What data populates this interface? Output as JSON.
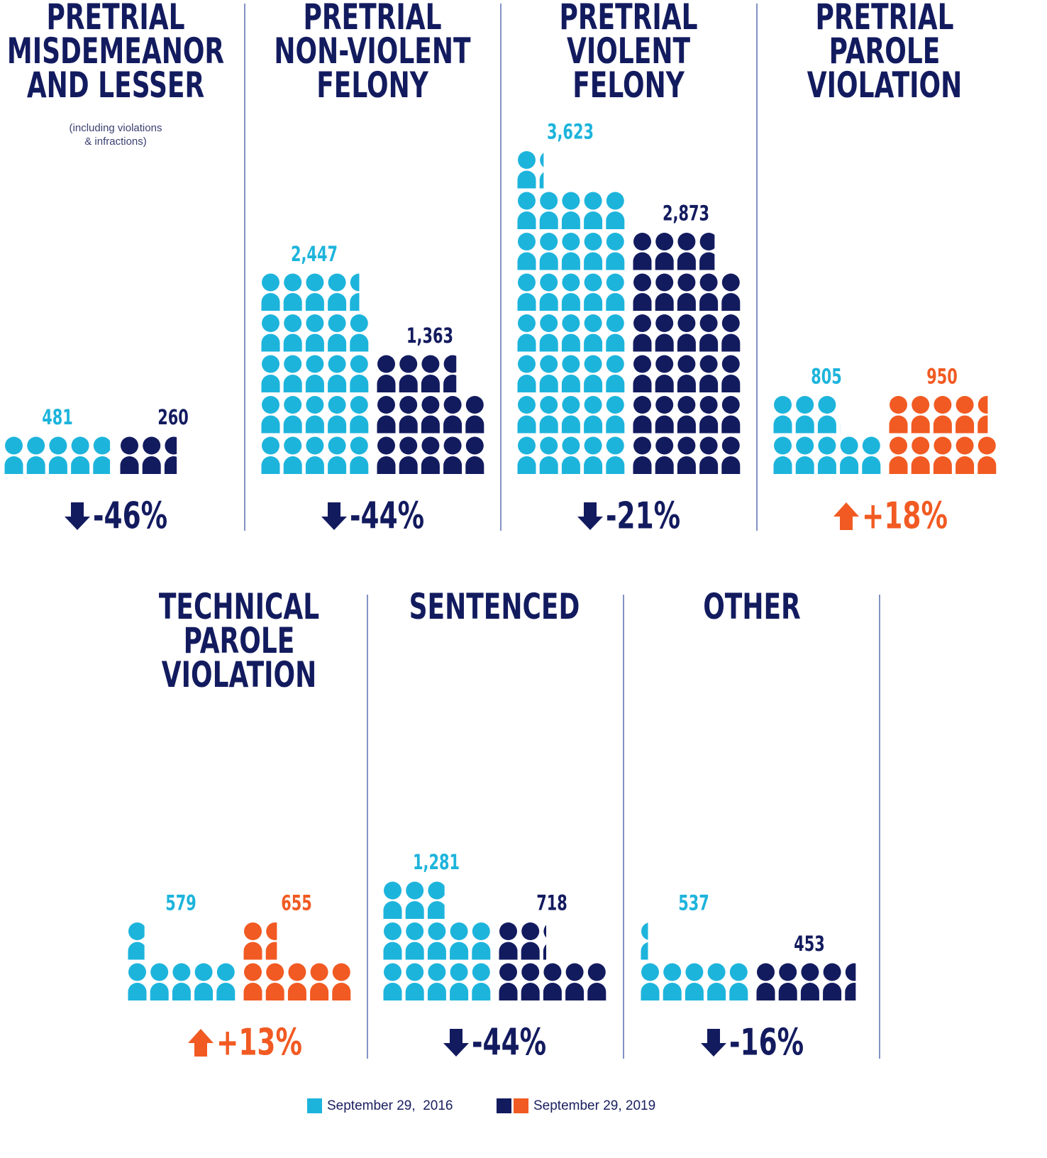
{
  "chart_data": [
    {
      "type": "pictogram",
      "title": [
        "PRETRIAL",
        "MISDEMEANOR",
        "AND LESSER"
      ],
      "subtitle": [
        "(including violations",
        "& infractions)"
      ],
      "values": [
        481,
        260
      ],
      "value_labels": [
        "481",
        "260"
      ],
      "colors": [
        "#1db4dc",
        "#131b5f"
      ],
      "change": -46,
      "change_label": "-46%"
    },
    {
      "type": "pictogram",
      "title": [
        "PRETRIAL",
        "NON-VIOLENT",
        "FELONY"
      ],
      "values": [
        2447,
        1363
      ],
      "value_labels": [
        "2,447",
        "1,363"
      ],
      "colors": [
        "#1db4dc",
        "#131b5f"
      ],
      "change": -44,
      "change_label": "-44%"
    },
    {
      "type": "pictogram",
      "title": [
        "PRETRIAL",
        "VIOLENT",
        "FELONY"
      ],
      "values": [
        3623,
        2873
      ],
      "value_labels": [
        "3,623",
        "2,873"
      ],
      "colors": [
        "#1db4dc",
        "#131b5f"
      ],
      "change": -21,
      "change_label": "-21%"
    },
    {
      "type": "pictogram",
      "title": [
        "PRETRIAL",
        "PAROLE",
        "VIOLATION"
      ],
      "values": [
        805,
        950
      ],
      "value_labels": [
        "805",
        "950"
      ],
      "colors": [
        "#1db4dc",
        "#f15a22"
      ],
      "change": 18,
      "change_label": "+18%"
    },
    {
      "type": "pictogram",
      "title": [
        "TECHNICAL",
        "PAROLE",
        "VIOLATION"
      ],
      "values": [
        579,
        655
      ],
      "value_labels": [
        "579",
        "655"
      ],
      "colors": [
        "#1db4dc",
        "#f15a22"
      ],
      "change": 13,
      "change_label": "+13%"
    },
    {
      "type": "pictogram",
      "title": [
        "SENTENCED"
      ],
      "values": [
        1281,
        718
      ],
      "value_labels": [
        "1,281",
        "718"
      ],
      "colors": [
        "#1db4dc",
        "#131b5f"
      ],
      "change": -44,
      "change_label": "-44%"
    },
    {
      "type": "pictogram",
      "title": [
        "OTHER"
      ],
      "values": [
        537,
        453
      ],
      "value_labels": [
        "537",
        "453"
      ],
      "colors": [
        "#1db4dc",
        "#131b5f"
      ],
      "change": -16,
      "change_label": "-16%"
    }
  ],
  "legend": [
    {
      "label": "September 29,  2016",
      "colors": [
        "#1db4dc"
      ]
    },
    {
      "label": "September 29, 2019",
      "colors": [
        "#131b5f",
        "#f15a22"
      ]
    }
  ]
}
